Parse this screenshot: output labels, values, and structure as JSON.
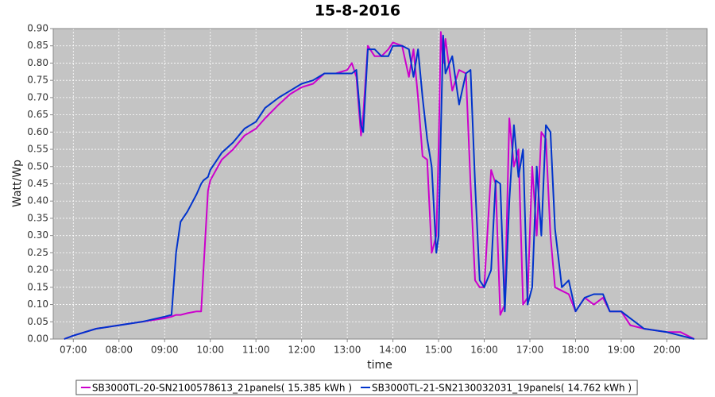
{
  "chart_data": {
    "type": "line",
    "title": "15-8-2016",
    "x_label": "time",
    "y_label": "Watt/Wp",
    "x": [
      6.8,
      7.0,
      7.5,
      8.0,
      8.5,
      9.0,
      9.15,
      9.25,
      9.35,
      9.5,
      9.7,
      9.8,
      9.85,
      9.95,
      10.0,
      10.25,
      10.5,
      10.75,
      11.0,
      11.2,
      11.5,
      11.75,
      12.0,
      12.25,
      12.5,
      12.75,
      13.0,
      13.1,
      13.2,
      13.3,
      13.35,
      13.45,
      13.6,
      13.75,
      13.9,
      14.0,
      14.2,
      14.35,
      14.45,
      14.55,
      14.65,
      14.75,
      14.85,
      14.95,
      15.0,
      15.05,
      15.1,
      15.15,
      15.3,
      15.45,
      15.6,
      15.7,
      15.8,
      15.9,
      16.0,
      16.15,
      16.25,
      16.35,
      16.45,
      16.55,
      16.65,
      16.75,
      16.85,
      16.95,
      17.05,
      17.15,
      17.25,
      17.35,
      17.45,
      17.55,
      17.7,
      17.85,
      18.0,
      18.2,
      18.4,
      18.6,
      18.75,
      19.0,
      19.2,
      19.5,
      20.0,
      20.3,
      20.6
    ],
    "series": [
      {
        "name": "SB3000TL-20-SN2100578613_21panels( 15.385 kWh )",
        "color": "#cc00cc",
        "values": [
          0.0,
          0.01,
          0.03,
          0.04,
          0.05,
          0.06,
          0.065,
          0.07,
          0.07,
          0.075,
          0.08,
          0.08,
          0.2,
          0.43,
          0.46,
          0.52,
          0.55,
          0.59,
          0.61,
          0.64,
          0.68,
          0.71,
          0.73,
          0.74,
          0.77,
          0.77,
          0.78,
          0.8,
          0.76,
          0.59,
          0.65,
          0.85,
          0.82,
          0.82,
          0.84,
          0.86,
          0.85,
          0.76,
          0.84,
          0.7,
          0.53,
          0.52,
          0.25,
          0.3,
          0.55,
          0.89,
          0.8,
          0.87,
          0.72,
          0.78,
          0.77,
          0.45,
          0.17,
          0.15,
          0.15,
          0.49,
          0.45,
          0.07,
          0.1,
          0.64,
          0.5,
          0.55,
          0.1,
          0.12,
          0.5,
          0.3,
          0.6,
          0.58,
          0.3,
          0.15,
          0.14,
          0.13,
          0.08,
          0.12,
          0.1,
          0.12,
          0.08,
          0.08,
          0.04,
          0.03,
          0.02,
          0.02,
          0.0
        ]
      },
      {
        "name": "SB3000TL-21-SN2130032031_19panels( 14.762 kWh )",
        "color": "#0033cc",
        "values": [
          0.0,
          0.01,
          0.03,
          0.04,
          0.05,
          0.065,
          0.07,
          0.25,
          0.34,
          0.37,
          0.42,
          0.45,
          0.46,
          0.47,
          0.49,
          0.54,
          0.57,
          0.61,
          0.63,
          0.67,
          0.7,
          0.72,
          0.74,
          0.75,
          0.77,
          0.77,
          0.77,
          0.77,
          0.78,
          0.62,
          0.6,
          0.84,
          0.84,
          0.82,
          0.82,
          0.85,
          0.85,
          0.84,
          0.76,
          0.84,
          0.7,
          0.58,
          0.5,
          0.25,
          0.3,
          0.6,
          0.88,
          0.77,
          0.82,
          0.68,
          0.77,
          0.78,
          0.45,
          0.17,
          0.15,
          0.2,
          0.46,
          0.45,
          0.08,
          0.4,
          0.62,
          0.47,
          0.55,
          0.1,
          0.15,
          0.5,
          0.3,
          0.62,
          0.6,
          0.32,
          0.15,
          0.17,
          0.08,
          0.12,
          0.13,
          0.13,
          0.08,
          0.08,
          0.06,
          0.03,
          0.02,
          0.01,
          0.0
        ]
      }
    ],
    "xlim": [
      6.56,
      20.88
    ],
    "xticks": [
      {
        "value": 7,
        "label": "07:00"
      },
      {
        "value": 8,
        "label": "08:00"
      },
      {
        "value": 9,
        "label": "09:00"
      },
      {
        "value": 10,
        "label": "10:00"
      },
      {
        "value": 11,
        "label": "11:00"
      },
      {
        "value": 12,
        "label": "12:00"
      },
      {
        "value": 13,
        "label": "13:00"
      },
      {
        "value": 14,
        "label": "14:00"
      },
      {
        "value": 15,
        "label": "15:00"
      },
      {
        "value": 16,
        "label": "16:00"
      },
      {
        "value": 17,
        "label": "17:00"
      },
      {
        "value": 18,
        "label": "18:00"
      },
      {
        "value": 19,
        "label": "19:00"
      },
      {
        "value": 20,
        "label": "20:00"
      }
    ],
    "ylim": [
      0,
      0.9
    ],
    "yticks": [
      {
        "value": 0,
        "label": "0.00"
      },
      {
        "value": 0.05,
        "label": "0.05"
      },
      {
        "value": 0.1,
        "label": "0.10"
      },
      {
        "value": 0.15,
        "label": "0.15"
      },
      {
        "value": 0.2,
        "label": "0.20"
      },
      {
        "value": 0.25,
        "label": "0.25"
      },
      {
        "value": 0.3,
        "label": "0.30"
      },
      {
        "value": 0.35,
        "label": "0.35"
      },
      {
        "value": 0.4,
        "label": "0.40"
      },
      {
        "value": 0.45,
        "label": "0.45"
      },
      {
        "value": 0.5,
        "label": "0.50"
      },
      {
        "value": 0.55,
        "label": "0.55"
      },
      {
        "value": 0.6,
        "label": "0.60"
      },
      {
        "value": 0.65,
        "label": "0.65"
      },
      {
        "value": 0.7,
        "label": "0.70"
      },
      {
        "value": 0.75,
        "label": "0.75"
      },
      {
        "value": 0.8,
        "label": "0.80"
      },
      {
        "value": 0.85,
        "label": "0.85"
      },
      {
        "value": 0.9,
        "label": "0.90"
      }
    ],
    "grid": true,
    "legend": "bottom"
  }
}
